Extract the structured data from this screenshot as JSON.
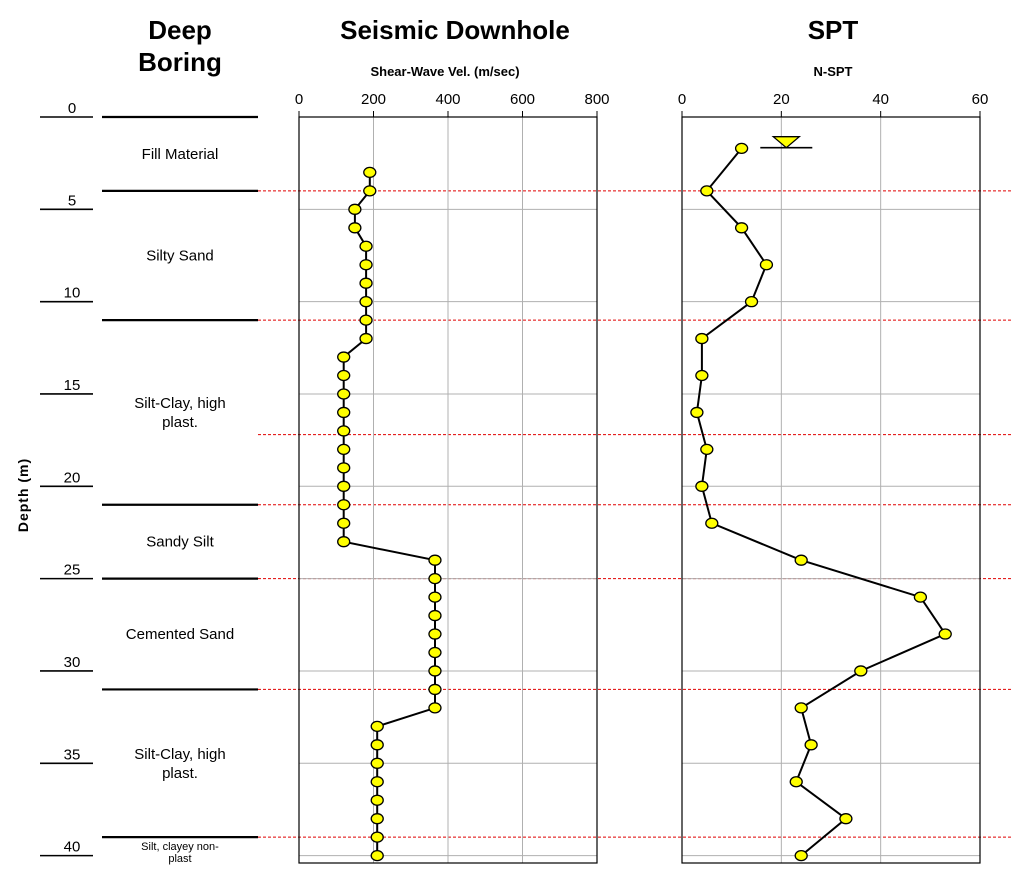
{
  "boring": {
    "title_line1": "Deep",
    "title_line2": "Boring",
    "depth_axis_label": "Depth (m)",
    "depth_ticks": [
      0,
      5,
      10,
      15,
      20,
      25,
      30,
      35,
      40
    ],
    "layers": [
      {
        "name": "Fill Material",
        "top": 0,
        "bottom": 4
      },
      {
        "name": "Silty Sand",
        "top": 4,
        "bottom": 11
      },
      {
        "name": "Silt-Clay, high plast.",
        "top": 11,
        "bottom": 21
      },
      {
        "name": "Sandy Silt",
        "top": 21,
        "bottom": 25
      },
      {
        "name": "Cemented Sand",
        "top": 25,
        "bottom": 31
      },
      {
        "name": "Silt-Clay, high plast.",
        "top": 31,
        "bottom": 39
      },
      {
        "name": "Silt, clayey non-plast",
        "top": 39,
        "bottom": 41
      }
    ],
    "boundary_depths": [
      4,
      11,
      17.2,
      21,
      25,
      31,
      39
    ]
  },
  "chart_data": [
    {
      "type": "line",
      "title": "Seismic Downhole",
      "xlabel": "Shear-Wave Vel. (m/sec)",
      "ylabel": "Depth (m)",
      "xlim": [
        0,
        800
      ],
      "ylim": [
        40,
        0
      ],
      "x_ticks": [
        0,
        200,
        400,
        600,
        800
      ],
      "grid": true,
      "series": [
        {
          "x": [
            190,
            190,
            150,
            150,
            180,
            180,
            180,
            180,
            180,
            180,
            120,
            120,
            120,
            120,
            120,
            120,
            120,
            120,
            120,
            120,
            120,
            365,
            365,
            365,
            365,
            365,
            365,
            365,
            365,
            365,
            210,
            210,
            210,
            210,
            210,
            210,
            210,
            210
          ],
          "y": [
            3,
            4,
            5,
            6,
            7,
            8,
            9,
            10,
            11,
            12,
            13,
            14,
            15,
            16,
            17,
            18,
            19,
            20,
            21,
            22,
            23,
            24,
            25,
            26,
            27,
            28,
            29,
            30,
            31,
            32,
            33,
            34,
            35,
            36,
            37,
            38,
            39,
            40
          ]
        }
      ]
    },
    {
      "type": "line",
      "title": "SPT",
      "xlabel": "N-SPT",
      "ylabel": "Depth (m)",
      "xlim": [
        0,
        60
      ],
      "ylim": [
        40,
        0
      ],
      "x_ticks": [
        0,
        20,
        40,
        60
      ],
      "grid": true,
      "water_table_symbol": {
        "x": 21,
        "depth": 1.5
      },
      "series": [
        {
          "x": [
            12,
            5,
            12,
            17,
            14,
            4,
            4,
            3,
            5,
            4,
            6,
            24,
            48,
            53,
            36,
            24,
            26,
            23,
            33,
            24
          ],
          "y": [
            1.7,
            4,
            6,
            8,
            10,
            12,
            14,
            16,
            18,
            20,
            22,
            24,
            26,
            28,
            30,
            32,
            34,
            36,
            38,
            40
          ]
        }
      ]
    }
  ]
}
